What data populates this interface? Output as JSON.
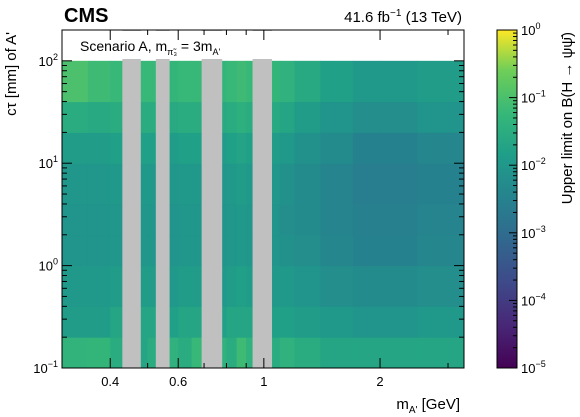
{
  "header": {
    "experiment": "CMS",
    "lumi_value": "41.6 fb",
    "lumi_exponent": "−1",
    "energy": " (13 TeV)"
  },
  "chart_data": {
    "type": "heatmap",
    "scenario_text": "Scenario A, m",
    "scenario_sub": "π̃₃",
    "scenario_eq": " = 3m",
    "scenario_sub2": "A'",
    "xlabel_main": "m",
    "xlabel_sub": "A'",
    "xlabel_unit": " [GeV]",
    "ylabel": "cτ [mm] of A'",
    "zlabel": "Upper limit on B(H → ψψ̄)",
    "x_scale": "log",
    "y_scale": "log",
    "z_scale": "log",
    "xlim": [
      0.3,
      3.3
    ],
    "ylim": [
      0.1,
      200
    ],
    "zlim": [
      1e-05,
      1
    ],
    "x_ticks": [
      {
        "value": 0.4,
        "label": "0.4"
      },
      {
        "value": 0.6,
        "label": "0.6"
      },
      {
        "value": 1,
        "label": "1"
      },
      {
        "value": 2,
        "label": "2"
      }
    ],
    "y_ticks": [
      {
        "value": 0.1,
        "base": "10",
        "exp": "−1"
      },
      {
        "value": 1,
        "base": "10",
        "exp": "0"
      },
      {
        "value": 10,
        "base": "10",
        "exp": "1"
      },
      {
        "value": 100,
        "base": "10",
        "exp": "2"
      }
    ],
    "z_ticks": [
      {
        "value": 1e-05,
        "base": "10",
        "exp": "−5"
      },
      {
        "value": 0.0001,
        "base": "10",
        "exp": "−4"
      },
      {
        "value": 0.001,
        "base": "10",
        "exp": "−3"
      },
      {
        "value": 0.01,
        "base": "10",
        "exp": "−2"
      },
      {
        "value": 0.1,
        "base": "10",
        "exp": "−1"
      },
      {
        "value": 1,
        "base": "10",
        "exp": "0"
      }
    ],
    "x_bin_edges": [
      0.3,
      0.35,
      0.4,
      0.45,
      0.5,
      0.55,
      0.6,
      0.65,
      0.7,
      0.75,
      0.8,
      0.85,
      0.9,
      0.95,
      1.0,
      1.1,
      1.2,
      1.4,
      1.7,
      2.0,
      2.5,
      3.3
    ],
    "y_bin_edges": [
      0.1,
      0.2,
      0.4,
      1.0,
      2.0,
      4.0,
      10,
      20,
      40,
      100
    ],
    "excluded_mass_bands": [
      [
        0.43,
        0.48
      ],
      [
        0.525,
        0.57
      ],
      [
        0.69,
        0.78
      ],
      [
        0.935,
        1.05
      ]
    ],
    "z_values": [
      [
        0.045,
        0.05,
        0.03,
        0.02,
        0.03,
        0.04,
        0.03,
        0.06,
        0.04,
        0.04,
        0.03,
        0.07,
        0.04,
        0.04,
        0.03,
        0.04,
        0.03,
        0.02,
        0.02,
        0.02,
        0.02
      ],
      [
        0.012,
        0.012,
        0.02,
        0.02,
        0.02,
        0.015,
        0.02,
        0.02,
        0.015,
        0.015,
        0.02,
        0.02,
        0.02,
        0.02,
        0.015,
        0.015,
        0.012,
        0.01,
        0.008,
        0.008,
        0.01
      ],
      [
        0.01,
        0.01,
        0.012,
        0.012,
        0.012,
        0.01,
        0.012,
        0.012,
        0.01,
        0.01,
        0.012,
        0.015,
        0.012,
        0.012,
        0.01,
        0.01,
        0.008,
        0.006,
        0.005,
        0.005,
        0.006
      ],
      [
        0.008,
        0.008,
        0.009,
        0.009,
        0.009,
        0.008,
        0.009,
        0.009,
        0.008,
        0.008,
        0.009,
        0.01,
        0.009,
        0.009,
        0.008,
        0.007,
        0.006,
        0.004,
        0.003,
        0.003,
        0.004
      ],
      [
        0.008,
        0.008,
        0.009,
        0.009,
        0.009,
        0.008,
        0.009,
        0.009,
        0.008,
        0.008,
        0.009,
        0.01,
        0.009,
        0.009,
        0.008,
        0.006,
        0.005,
        0.0035,
        0.0028,
        0.0028,
        0.0035
      ],
      [
        0.009,
        0.009,
        0.01,
        0.01,
        0.01,
        0.009,
        0.01,
        0.01,
        0.009,
        0.009,
        0.01,
        0.012,
        0.01,
        0.01,
        0.009,
        0.007,
        0.005,
        0.0035,
        0.0025,
        0.0025,
        0.003
      ],
      [
        0.012,
        0.012,
        0.015,
        0.015,
        0.015,
        0.012,
        0.015,
        0.015,
        0.012,
        0.012,
        0.015,
        0.018,
        0.015,
        0.015,
        0.012,
        0.01,
        0.007,
        0.005,
        0.003,
        0.003,
        0.004
      ],
      [
        0.03,
        0.025,
        0.03,
        0.03,
        0.03,
        0.025,
        0.03,
        0.03,
        0.025,
        0.025,
        0.03,
        0.035,
        0.03,
        0.03,
        0.025,
        0.02,
        0.012,
        0.008,
        0.006,
        0.006,
        0.008
      ],
      [
        0.1,
        0.07,
        0.06,
        0.06,
        0.06,
        0.05,
        0.06,
        0.06,
        0.05,
        0.05,
        0.06,
        0.07,
        0.06,
        0.06,
        0.05,
        0.04,
        0.025,
        0.015,
        0.01,
        0.01,
        0.012
      ]
    ],
    "excluded_color": "#c0c0c0",
    "colormap": "viridis"
  }
}
